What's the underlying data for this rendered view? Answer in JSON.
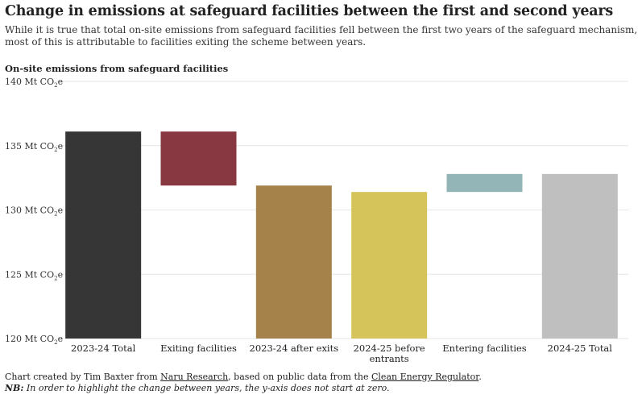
{
  "title": "Change in emissions at safeguard facilities between the first and second years",
  "subtitle": "While it is true that total on-site emissions from safeguard facilities fell between the first two years of the safeguard mechanism, most of this is attributable to facilities exiting the scheme between years.",
  "chart_label": "On-site emissions from safeguard facilities",
  "chart_data": {
    "type": "bar",
    "subtype": "waterfall",
    "title": "On-site emissions from safeguard facilities",
    "xlabel": "",
    "ylabel": "",
    "unit_prefix": "Mt CO",
    "unit_subscript": "2",
    "unit_suffix": "e",
    "ylim": [
      120,
      140
    ],
    "yticks": [
      120,
      125,
      130,
      135,
      140
    ],
    "gridlines": true,
    "categories": [
      {
        "label_lines": [
          "2023-24 Total"
        ],
        "start": 120,
        "end": 136.1,
        "color": "#363636"
      },
      {
        "label_lines": [
          "Exiting facilities"
        ],
        "start": 131.9,
        "end": 136.1,
        "color": "#873840"
      },
      {
        "label_lines": [
          "2023-24 after exits"
        ],
        "start": 120,
        "end": 131.9,
        "color": "#a48249"
      },
      {
        "label_lines": [
          "2024-25 before",
          "entrants"
        ],
        "start": 120,
        "end": 131.4,
        "color": "#d5c45a"
      },
      {
        "label_lines": [
          "Entering facilities"
        ],
        "start": 131.4,
        "end": 132.8,
        "color": "#93b5b7"
      },
      {
        "label_lines": [
          "2024-25 Total"
        ],
        "start": 120,
        "end": 132.8,
        "color": "#bfbfbf"
      }
    ]
  },
  "footer": {
    "created_prefix": "Chart created by Tim Baxter from ",
    "naru_link": "Naru Research",
    "created_middle": ", based on public data from the ",
    "cer_link": "Clean Energy Regulator",
    "created_suffix": ".",
    "nb_label": "NB:",
    "nb_text": " In order to highlight the change between years, the y-axis does not start at zero."
  }
}
